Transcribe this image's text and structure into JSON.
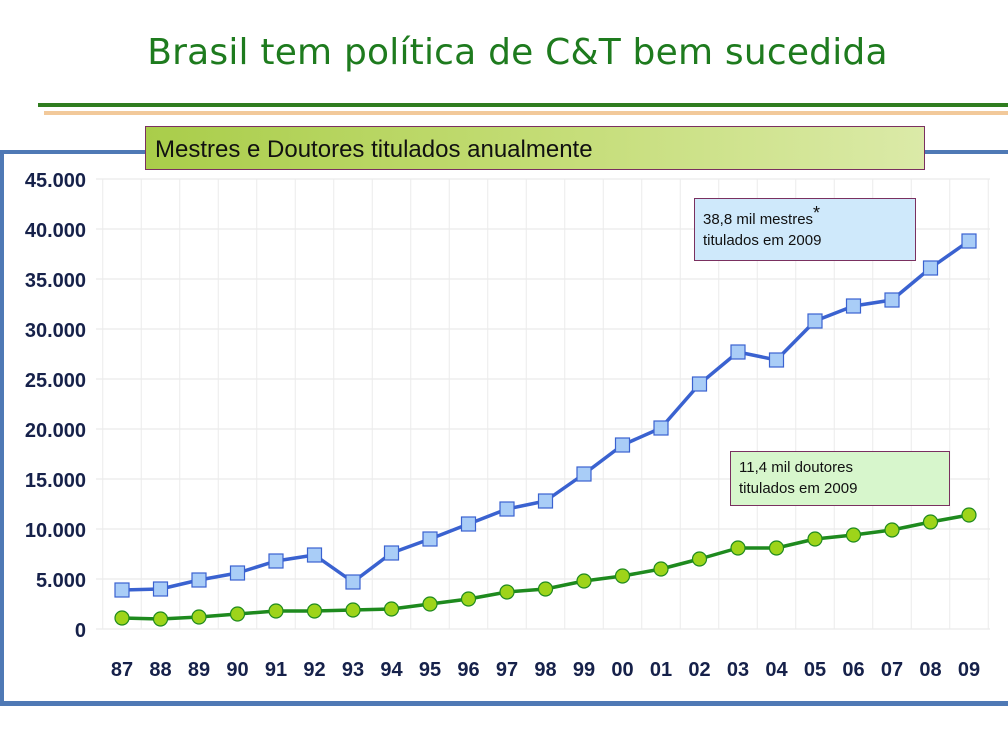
{
  "slide": {
    "title": "Brasil tem política de C&T bem sucedida"
  },
  "annotations": {
    "mestres": {
      "text": "38,8 mil mestres",
      "mark": "*",
      "line2": "titulados em 2009"
    },
    "doutores": {
      "line1": "11,4 mil doutores",
      "line2": "titulados em 2009"
    }
  },
  "colors": {
    "mestres_line": "#3a62d0",
    "mestres_marker": "#a9cdf7",
    "doutores_line": "#1e8a1e",
    "doutores_marker": "#9ed41a",
    "header_bg": "#b5d45a",
    "frame": "#4f79b5"
  },
  "chart_data": {
    "type": "line",
    "title": "Mestres e Doutores titulados anualmente",
    "categories": [
      "87",
      "88",
      "89",
      "90",
      "91",
      "92",
      "93",
      "94",
      "95",
      "96",
      "97",
      "98",
      "99",
      "00",
      "01",
      "02",
      "03",
      "04",
      "05",
      "06",
      "07",
      "08",
      "09"
    ],
    "ylim": [
      0,
      45000
    ],
    "yticks": [
      0,
      5000,
      10000,
      15000,
      20000,
      25000,
      30000,
      35000,
      40000,
      45000
    ],
    "ytick_labels": [
      "0",
      "5.000",
      "10.000",
      "15.000",
      "20.000",
      "25.000",
      "30.000",
      "35.000",
      "40.000",
      "45.000"
    ],
    "grid": true,
    "series": [
      {
        "key": "mestres",
        "marker": "square",
        "values": [
          3900,
          4000,
          4900,
          5600,
          6800,
          7400,
          4700,
          7600,
          9000,
          10500,
          12000,
          12800,
          15500,
          18400,
          20100,
          24500,
          27700,
          26900,
          30800,
          32300,
          32900,
          36100,
          38800
        ]
      },
      {
        "key": "doutores",
        "marker": "circle",
        "values": [
          1100,
          1000,
          1200,
          1500,
          1800,
          1800,
          1900,
          2000,
          2500,
          3000,
          3700,
          4000,
          4800,
          5300,
          6000,
          7000,
          8100,
          8100,
          9000,
          9400,
          9900,
          10700,
          11400
        ]
      }
    ]
  }
}
